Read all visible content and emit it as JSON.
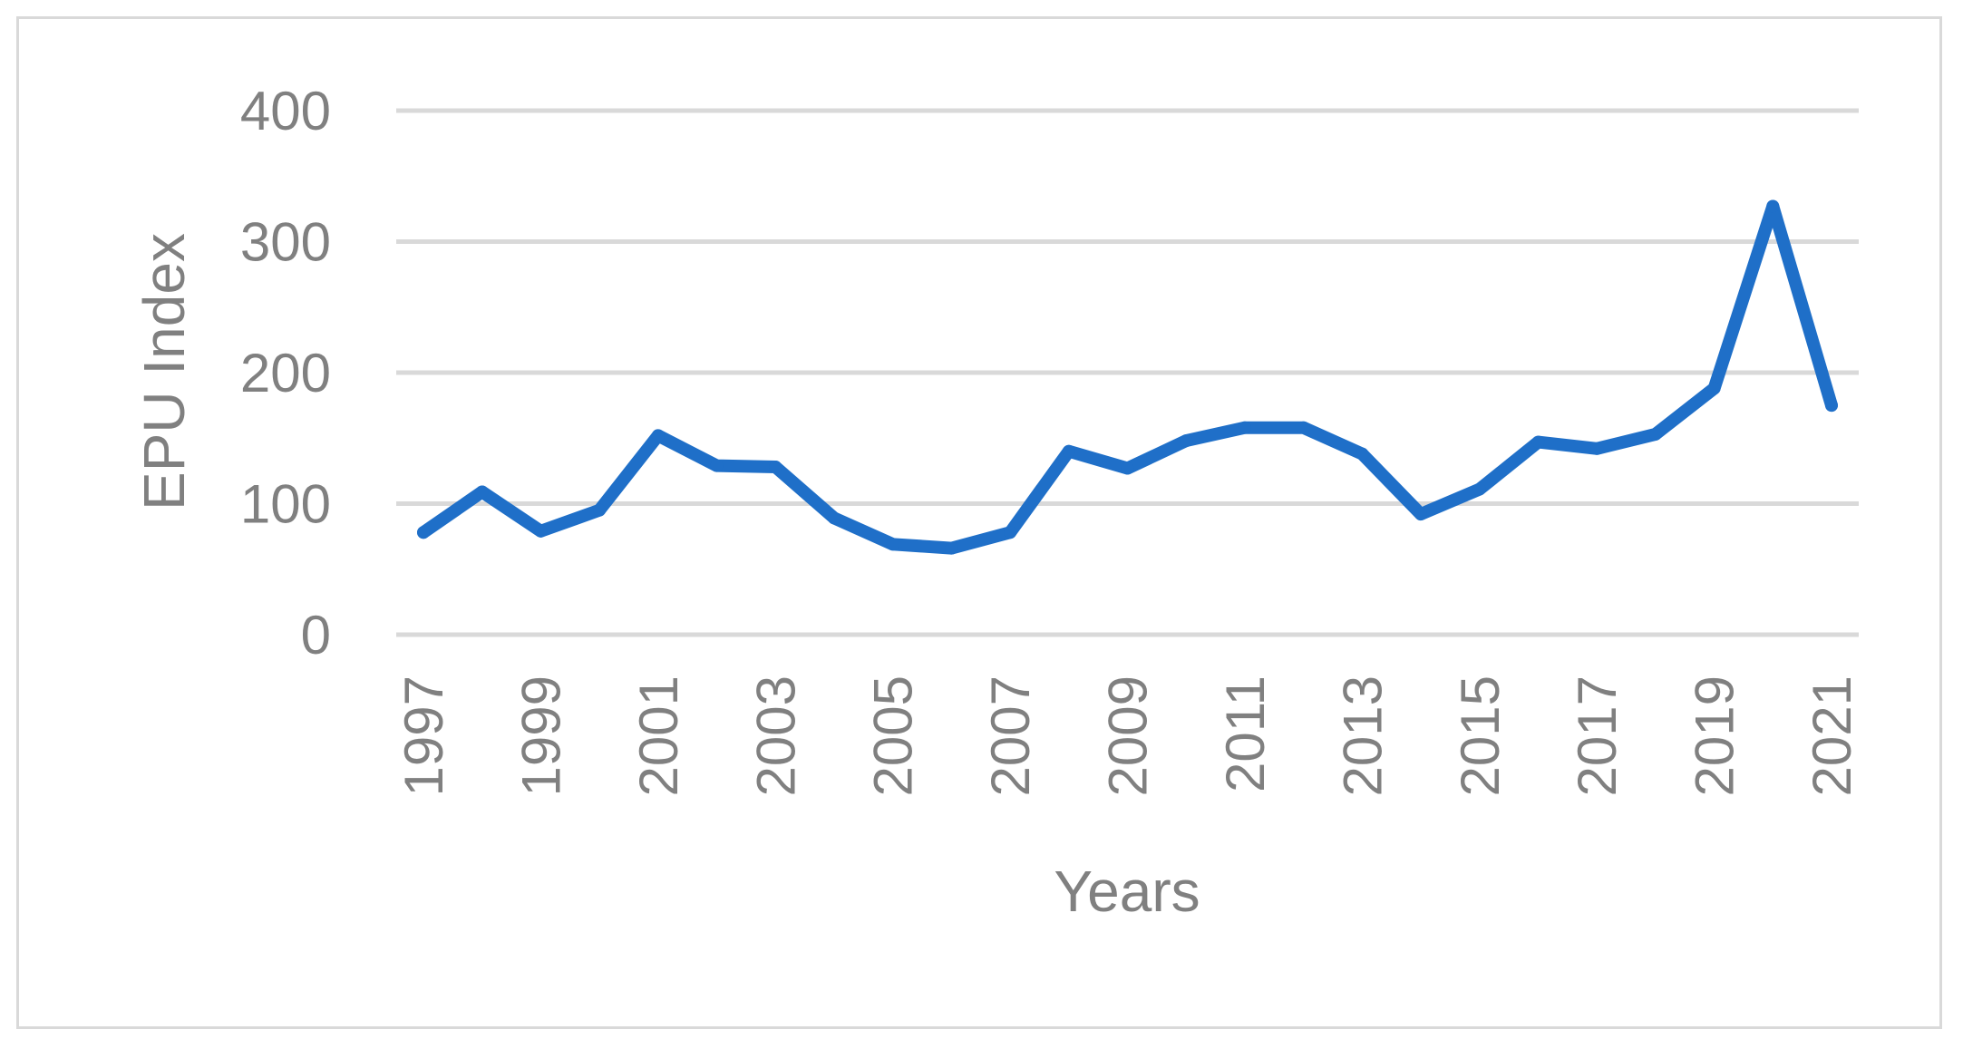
{
  "chart_data": {
    "type": "line",
    "title": "",
    "xlabel": "Years",
    "ylabel": "EPU Index",
    "ylim": [
      0,
      400
    ],
    "yticks": [
      "0",
      "100",
      "200",
      "300",
      "400"
    ],
    "grid": true,
    "legend": "none",
    "x": [
      1997,
      1998,
      1999,
      2000,
      2001,
      2002,
      2003,
      2004,
      2005,
      2006,
      2007,
      2008,
      2009,
      2010,
      2011,
      2012,
      2013,
      2014,
      2015,
      2016,
      2017,
      2018,
      2019,
      2020,
      2021
    ],
    "xtick_labels": [
      "1997",
      "1999",
      "2001",
      "2003",
      "2005",
      "2007",
      "2009",
      "2011",
      "2013",
      "2015",
      "2017",
      "2019",
      "2021"
    ],
    "series": [
      {
        "values": [
          78,
          109,
          79,
          95,
          152,
          129,
          128,
          89,
          69,
          66,
          78,
          140,
          127,
          148,
          158,
          158,
          138,
          92,
          111,
          147,
          142,
          153,
          188,
          327,
          175
        ],
        "color": "#1f6fc8"
      }
    ],
    "colors": {
      "line": "#1f6fc8",
      "grid": "#d9d9d9",
      "text": "#808080",
      "border": "#d9d9d9"
    }
  }
}
